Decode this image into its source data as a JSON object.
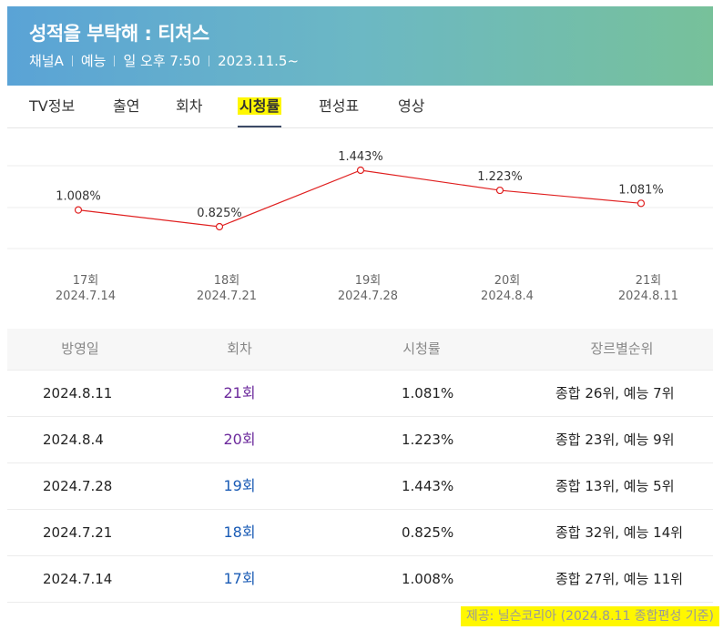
{
  "header": {
    "title": "성적을 부탁해 : 티처스",
    "channel": "채널A",
    "genre": "예능",
    "airtime": "일 오후 7:50",
    "start_date": "2023.11.5~"
  },
  "tabs": [
    {
      "label": "TV정보",
      "active": false
    },
    {
      "label": "출연",
      "active": false
    },
    {
      "label": "회차",
      "active": false
    },
    {
      "label": "시청률",
      "active": true
    },
    {
      "label": "편성표",
      "active": false
    },
    {
      "label": "영상",
      "active": false
    }
  ],
  "chart_data": {
    "type": "line",
    "x": [
      "17회",
      "18회",
      "19회",
      "20회",
      "21회"
    ],
    "dates": [
      "2024.7.14",
      "2024.7.21",
      "2024.7.28",
      "2024.8.4",
      "2024.8.11"
    ],
    "values": [
      1.008,
      0.825,
      1.443,
      1.223,
      1.081
    ],
    "value_labels": [
      "1.008%",
      "0.825%",
      "1.443%",
      "1.223%",
      "1.081%"
    ],
    "color": "#e02020"
  },
  "table": {
    "headers": [
      "방영일",
      "회차",
      "시청률",
      "장르별순위"
    ],
    "rows": [
      {
        "date": "2024.8.11",
        "episode": "21회",
        "rating": "1.081%",
        "rank": "종합 26위, 예능 7위",
        "visited": true
      },
      {
        "date": "2024.8.4",
        "episode": "20회",
        "rating": "1.223%",
        "rank": "종합 23위, 예능 9위",
        "visited": true
      },
      {
        "date": "2024.7.28",
        "episode": "19회",
        "rating": "1.443%",
        "rank": "종합 13위, 예능 5위",
        "visited": false
      },
      {
        "date": "2024.7.21",
        "episode": "18회",
        "rating": "0.825%",
        "rank": "종합 32위, 예능 14위",
        "visited": false
      },
      {
        "date": "2024.7.14",
        "episode": "17회",
        "rating": "1.008%",
        "rank": "종합 27위, 예능 11위",
        "visited": false
      }
    ]
  },
  "footer": {
    "source": "제공: 닐슨코리아 (2024.8.11 종합편성 기준)"
  }
}
